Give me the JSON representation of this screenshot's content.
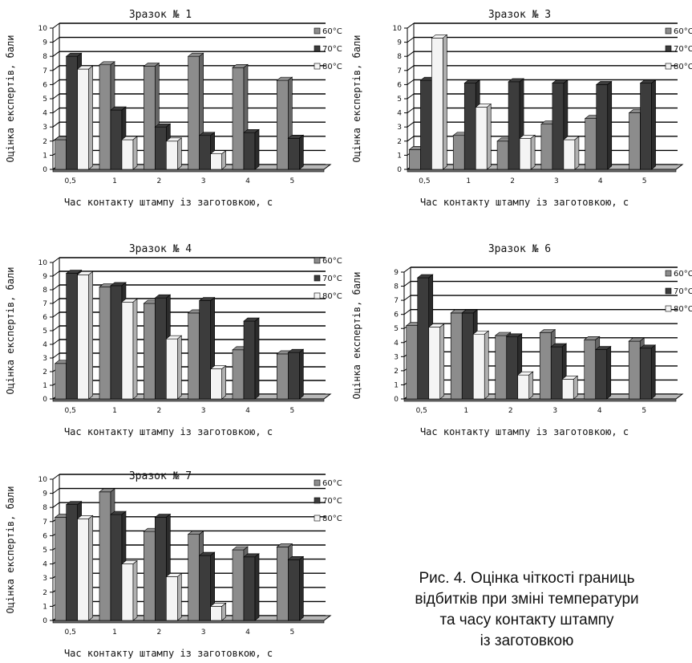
{
  "chart_data": [
    {
      "type": "bar",
      "title": "Зразок № 1",
      "xlabel": "Час контакту штампу із заготовкою, с",
      "ylabel": "Оцінка експертів, бали",
      "categories": [
        "0,5",
        "1",
        "2",
        "3",
        "4",
        "5"
      ],
      "yticks": [
        "0",
        "1",
        "2",
        "3",
        "4",
        "5",
        "6",
        "7",
        "8",
        "9",
        "10"
      ],
      "ylim": [
        0,
        10
      ],
      "legend_position": "top-right",
      "series": [
        {
          "name": "60°C",
          "values": [
            2.1,
            7.4,
            7.3,
            8.0,
            7.2,
            6.3
          ]
        },
        {
          "name": "70°C",
          "values": [
            8.0,
            4.2,
            3.0,
            2.4,
            2.6,
            2.2
          ]
        },
        {
          "name": "80°C",
          "values": [
            7.1,
            2.1,
            2.0,
            1.1,
            null,
            null
          ]
        }
      ]
    },
    {
      "type": "bar",
      "title": "Зразок № 3",
      "xlabel": "Час контакту штампу із заготовкою, с",
      "ylabel": "Оцінка експертів, бали",
      "categories": [
        "0,5",
        "1",
        "2",
        "3",
        "4",
        "5"
      ],
      "yticks": [
        "0",
        "1",
        "2",
        "3",
        "4",
        "5",
        "6",
        "7",
        "8",
        "9",
        "10"
      ],
      "ylim": [
        0,
        10
      ],
      "legend_position": "top-right",
      "series": [
        {
          "name": "60°C",
          "values": [
            1.4,
            2.4,
            2.0,
            3.2,
            3.6,
            4.0
          ]
        },
        {
          "name": "70°C",
          "values": [
            6.3,
            6.1,
            6.2,
            6.1,
            6.0,
            6.1
          ]
        },
        {
          "name": "80°C",
          "values": [
            9.3,
            4.4,
            2.2,
            2.1,
            null,
            null
          ]
        }
      ]
    },
    {
      "type": "bar",
      "title": "Зразок № 4",
      "xlabel": "Час контакту штампу із заготовкою, с",
      "ylabel": "Оцінка експертів, бали",
      "categories": [
        "0,5",
        "1",
        "2",
        "3",
        "4",
        "5"
      ],
      "yticks": [
        "0",
        "1",
        "2",
        "3",
        "4",
        "5",
        "6",
        "7",
        "8",
        "9",
        "10"
      ],
      "ylim": [
        0,
        10
      ],
      "legend_position": "top-right",
      "series": [
        {
          "name": "60°C",
          "values": [
            2.6,
            8.2,
            7.0,
            6.3,
            3.6,
            3.3
          ]
        },
        {
          "name": "70°C",
          "values": [
            9.2,
            8.3,
            7.4,
            7.2,
            5.7,
            3.4
          ]
        },
        {
          "name": "80°C",
          "values": [
            9.1,
            7.1,
            4.4,
            2.2,
            null,
            null
          ]
        }
      ]
    },
    {
      "type": "bar",
      "title": "Зразок № 6",
      "xlabel": "Час контакту штампу із заготовкою, с",
      "ylabel": "Оцінка експертів, бали",
      "categories": [
        "0,5",
        "1",
        "2",
        "3",
        "4",
        "5"
      ],
      "yticks": [
        "0",
        "1",
        "2",
        "3",
        "4",
        "5",
        "6",
        "7",
        "8",
        "9"
      ],
      "ylim": [
        0,
        9
      ],
      "legend_position": "top-right",
      "series": [
        {
          "name": "60°C",
          "values": [
            5.2,
            6.1,
            4.5,
            4.7,
            4.2,
            4.1
          ]
        },
        {
          "name": "70°C",
          "values": [
            8.6,
            6.1,
            4.4,
            3.7,
            3.5,
            3.6
          ]
        },
        {
          "name": "80°C",
          "values": [
            5.1,
            4.6,
            1.7,
            1.4,
            null,
            null
          ]
        }
      ]
    },
    {
      "type": "bar",
      "title": "Зразок № 7",
      "xlabel": "Час контакту штампу із заготовкою, с",
      "ylabel": "Оцінка експертів, бали",
      "categories": [
        "0,5",
        "1",
        "2",
        "3",
        "4",
        "5"
      ],
      "yticks": [
        "0",
        "1",
        "2",
        "3",
        "4",
        "5",
        "6",
        "7",
        "8",
        "9",
        "10"
      ],
      "ylim": [
        0,
        10
      ],
      "legend_position": "top-right",
      "series": [
        {
          "name": "60°C",
          "values": [
            7.3,
            9.1,
            6.3,
            6.1,
            5.0,
            5.2
          ]
        },
        {
          "name": "70°C",
          "values": [
            8.2,
            7.5,
            7.3,
            4.6,
            4.5,
            4.3
          ]
        },
        {
          "name": "80°C",
          "values": [
            7.2,
            4.0,
            3.1,
            1.0,
            null,
            null
          ]
        }
      ]
    }
  ],
  "series_colors": [
    "#8c8c8c",
    "#3c3c3c",
    "#f4f4f4"
  ],
  "caption": {
    "line1": "Рис. 4. Оцінка чіткості границь",
    "line2": "відбитків при зміні температури",
    "line3": "та часу контакту штампу",
    "line4": "із заготовкою"
  }
}
